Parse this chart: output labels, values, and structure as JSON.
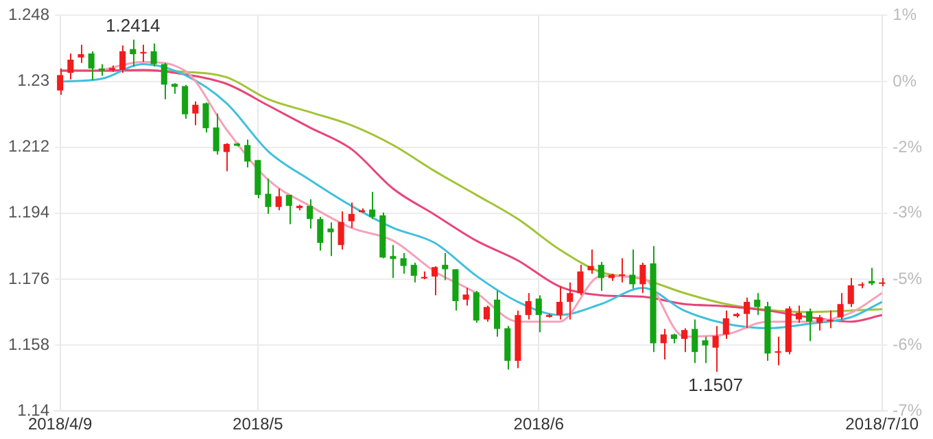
{
  "chart_data": {
    "type": "candlestick",
    "categories": [
      "2018/4/9",
      null,
      null,
      null,
      null,
      null,
      null,
      null,
      null,
      null,
      null,
      null,
      null,
      null,
      null,
      null,
      null,
      null,
      null,
      "2018/5",
      null,
      null,
      null,
      null,
      null,
      null,
      null,
      null,
      null,
      null,
      null,
      null,
      null,
      null,
      null,
      null,
      null,
      null,
      null,
      null,
      null,
      null,
      null,
      null,
      null,
      null,
      "2018/6",
      null,
      null,
      null,
      null,
      null,
      null,
      null,
      null,
      null,
      null,
      null,
      null,
      null,
      null,
      null,
      null,
      null,
      null,
      null,
      null,
      null,
      null,
      null,
      null,
      null,
      null,
      null,
      null,
      null,
      null,
      null,
      null,
      "2018/7/10"
    ],
    "ohlc": [
      [
        1.2275,
        1.2335,
        1.2263,
        1.2317
      ],
      [
        1.2323,
        1.2376,
        1.2305,
        1.2359
      ],
      [
        1.2365,
        1.24,
        1.235,
        1.2374
      ],
      [
        1.2376,
        1.2382,
        1.2303,
        1.2335
      ],
      [
        1.2335,
        1.2347,
        1.2315,
        1.2329
      ],
      [
        1.2331,
        1.2343,
        1.2326,
        1.2336
      ],
      [
        1.2331,
        1.2398,
        1.2323,
        1.2382
      ],
      [
        1.2388,
        1.2414,
        1.2341,
        1.2374
      ],
      [
        1.2376,
        1.24,
        1.2353,
        1.238
      ],
      [
        1.2382,
        1.2403,
        1.2341,
        1.2347
      ],
      [
        1.2347,
        1.235,
        1.2251,
        1.2291
      ],
      [
        1.2293,
        1.2295,
        1.2266,
        1.2285
      ],
      [
        1.2287,
        1.229,
        1.2198,
        1.221
      ],
      [
        1.2212,
        1.2245,
        1.218,
        1.2236
      ],
      [
        1.224,
        1.2242,
        1.216,
        1.2172
      ],
      [
        1.2174,
        1.2212,
        1.21,
        1.2109
      ],
      [
        1.2107,
        1.2131,
        1.2055,
        1.2129
      ],
      [
        1.213,
        1.2132,
        1.2122,
        1.2124
      ],
      [
        1.2126,
        1.2141,
        1.2065,
        1.2081
      ],
      [
        1.2085,
        1.2085,
        1.1981,
        1.199
      ],
      [
        1.1993,
        1.2034,
        1.1938,
        1.1957
      ],
      [
        1.1957,
        1.2007,
        1.1948,
        1.1986
      ],
      [
        1.199,
        1.199,
        1.191,
        1.196
      ],
      [
        1.1954,
        1.1963,
        1.1948,
        1.196
      ],
      [
        1.196,
        1.1978,
        1.1898,
        1.1924
      ],
      [
        1.1924,
        1.193,
        1.1838,
        1.1859
      ],
      [
        1.1898,
        1.1915,
        1.1823,
        1.1888
      ],
      [
        1.1853,
        1.1945,
        1.1841,
        1.1916
      ],
      [
        1.1918,
        1.1969,
        1.19,
        1.1938
      ],
      [
        1.1943,
        1.1953,
        1.1941,
        1.1948
      ],
      [
        1.195,
        1.1998,
        1.1924,
        1.193
      ],
      [
        1.1934,
        1.1942,
        1.1817,
        1.1819
      ],
      [
        1.1823,
        1.1853,
        1.1763,
        1.1815
      ],
      [
        1.1817,
        1.1831,
        1.1775,
        1.1796
      ],
      [
        1.1799,
        1.1805,
        1.1751,
        1.1769
      ],
      [
        1.1762,
        1.1781,
        1.176,
        1.1766
      ],
      [
        1.1767,
        1.1795,
        1.1716,
        1.1793
      ],
      [
        1.1799,
        1.1831,
        1.1757,
        1.1787
      ],
      [
        1.1787,
        1.1787,
        1.1674,
        1.17
      ],
      [
        1.1704,
        1.1736,
        1.1688,
        1.1718
      ],
      [
        1.1724,
        1.1728,
        1.1641,
        1.1647
      ],
      [
        1.165,
        1.1688,
        1.1644,
        1.1684
      ],
      [
        1.1704,
        1.1728,
        1.1603,
        1.1624
      ],
      [
        1.1626,
        1.1632,
        1.1513,
        1.1537
      ],
      [
        1.1537,
        1.1674,
        1.1517,
        1.1662
      ],
      [
        1.1662,
        1.1722,
        1.165,
        1.17
      ],
      [
        1.1707,
        1.1716,
        1.1615,
        1.1662
      ],
      [
        1.1657,
        1.1665,
        1.1655,
        1.1662
      ],
      [
        1.1662,
        1.174,
        1.165,
        1.1698
      ],
      [
        1.1698,
        1.1751,
        1.165,
        1.1722
      ],
      [
        1.1722,
        1.1799,
        1.1716,
        1.1781
      ],
      [
        1.1784,
        1.1841,
        1.1775,
        1.1796
      ],
      [
        1.1799,
        1.1807,
        1.1728,
        1.1763
      ],
      [
        1.1763,
        1.1775,
        1.1755,
        1.1772
      ],
      [
        1.1769,
        1.1817,
        1.1751,
        1.1773
      ],
      [
        1.1772,
        1.1841,
        1.1734,
        1.1746
      ],
      [
        1.1746,
        1.1805,
        1.1722,
        1.1799
      ],
      [
        1.1803,
        1.185,
        1.1561,
        1.1585
      ],
      [
        1.1585,
        1.1624,
        1.1541,
        1.1609
      ],
      [
        1.1609,
        1.1611,
        1.1585,
        1.1597
      ],
      [
        1.1597,
        1.1626,
        1.1561,
        1.1621
      ],
      [
        1.1624,
        1.165,
        1.1531,
        1.1561
      ],
      [
        1.1593,
        1.1603,
        1.1531,
        1.1579
      ],
      [
        1.1573,
        1.1632,
        1.1507,
        1.1605
      ],
      [
        1.1609,
        1.1674,
        1.1597,
        1.1653
      ],
      [
        1.1659,
        1.1668,
        1.1655,
        1.1665
      ],
      [
        1.1665,
        1.171,
        1.1626,
        1.1698
      ],
      [
        1.1704,
        1.1722,
        1.1662,
        1.1684
      ],
      [
        1.1686,
        1.1698,
        1.1537,
        1.1557
      ],
      [
        1.1559,
        1.1603,
        1.1525,
        1.1563
      ],
      [
        1.1561,
        1.1686,
        1.1555,
        1.168
      ],
      [
        1.165,
        1.1688,
        1.1641,
        1.1668
      ],
      [
        1.1672,
        1.168,
        1.1591,
        1.1644
      ],
      [
        1.1641,
        1.1662,
        1.162,
        1.1656
      ],
      [
        1.1645,
        1.1674,
        1.1626,
        1.1649
      ],
      [
        1.1656,
        1.1722,
        1.165,
        1.1692
      ],
      [
        1.1692,
        1.1763,
        1.1684,
        1.1743
      ],
      [
        1.1743,
        1.1751,
        1.1735,
        1.1746
      ],
      [
        1.1755,
        1.1791,
        1.1743,
        1.1748
      ],
      [
        1.1748,
        1.1763,
        1.174,
        1.1751
      ]
    ],
    "colors": [
      "#f21c1c",
      "#f21c1c",
      "#f21c1c",
      "#14a314",
      "#14a314",
      "#f21c1c",
      "#f21c1c",
      "#14a314",
      "#f21c1c",
      "#14a314",
      "#14a314",
      "#14a314",
      "#14a314",
      "#f21c1c",
      "#14a314",
      "#14a314",
      "#f21c1c",
      "#14a314",
      "#14a314",
      "#14a314",
      "#14a314",
      "#f21c1c",
      "#14a314",
      "#f21c1c",
      "#14a314",
      "#14a314",
      "#14a314",
      "#f21c1c",
      "#f21c1c",
      "#f21c1c",
      "#14a314",
      "#14a314",
      "#14a314",
      "#14a314",
      "#14a314",
      "#f21c1c",
      "#f21c1c",
      "#14a314",
      "#14a314",
      "#f21c1c",
      "#14a314",
      "#f21c1c",
      "#14a314",
      "#14a314",
      "#f21c1c",
      "#f21c1c",
      "#14a314",
      "#f21c1c",
      "#f21c1c",
      "#f21c1c",
      "#f21c1c",
      "#f21c1c",
      "#14a314",
      "#f21c1c",
      "#f21c1c",
      "#14a314",
      "#f21c1c",
      "#14a314",
      "#f21c1c",
      "#14a314",
      "#f21c1c",
      "#14a314",
      "#14a314",
      "#f21c1c",
      "#f21c1c",
      "#f21c1c",
      "#f21c1c",
      "#14a314",
      "#14a314",
      "#f21c1c",
      "#f21c1c",
      "#f21c1c",
      "#14a314",
      "#f21c1c",
      "#f21c1c",
      "#f21c1c",
      "#f21c1c",
      "#f21c1c",
      "#14a314",
      "#f21c1c"
    ],
    "series": [
      {
        "type": "line",
        "color": "#f7a1b8",
        "values": [
          null,
          null,
          null,
          null,
          1.2331,
          null,
          null,
          null,
          1.2353,
          null,
          null,
          null,
          1.2329,
          null,
          null,
          null,
          1.2168,
          null,
          null,
          null,
          1.2031,
          null,
          null,
          null,
          1.196,
          null,
          null,
          null,
          1.19,
          null,
          null,
          null,
          1.1865,
          null,
          null,
          null,
          1.1781,
          null,
          null,
          null,
          1.1722,
          null,
          null,
          null,
          1.1644,
          null,
          null,
          null,
          1.1644,
          null,
          null,
          null,
          1.1769,
          null,
          null,
          null,
          1.1763,
          null,
          null,
          null,
          1.1603,
          null,
          null,
          null,
          1.1609,
          null,
          null,
          null,
          1.1644,
          null,
          null,
          null,
          1.1644,
          null,
          null,
          null,
          1.1668,
          null,
          null,
          1.1722
        ]
      },
      {
        "type": "line",
        "color": "#3fc0dd",
        "values": [
          1.2299,
          null,
          null,
          null,
          1.2307,
          null,
          null,
          null,
          1.2347,
          null,
          null,
          null,
          1.2317,
          null,
          null,
          null,
          1.224,
          null,
          null,
          null,
          1.2109,
          null,
          null,
          null,
          1.2031,
          null,
          null,
          null,
          1.196,
          null,
          null,
          null,
          1.19,
          null,
          null,
          null,
          1.1859,
          null,
          null,
          null,
          1.1769,
          null,
          null,
          null,
          1.1698,
          null,
          null,
          null,
          1.1662,
          null,
          null,
          null,
          1.1692,
          null,
          null,
          null,
          1.1736,
          null,
          null,
          null,
          1.1674,
          null,
          null,
          null,
          1.1638,
          null,
          null,
          null,
          1.1626,
          null,
          null,
          null,
          1.1638,
          null,
          null,
          null,
          1.1656,
          null,
          null,
          1.1698
        ]
      },
      {
        "type": "line",
        "color": "#e8457a",
        "values": [
          1.2329,
          null,
          null,
          null,
          1.2329,
          null,
          null,
          null,
          1.2331,
          null,
          null,
          null,
          1.2319,
          null,
          null,
          null,
          1.2293,
          null,
          null,
          null,
          1.2234,
          null,
          null,
          null,
          1.2174,
          null,
          null,
          null,
          1.2115,
          null,
          null,
          null,
          1.2007,
          null,
          null,
          null,
          1.1936,
          null,
          null,
          null,
          1.1865,
          null,
          null,
          null,
          1.1811,
          null,
          null,
          null,
          1.174,
          null,
          null,
          null,
          1.1716,
          null,
          null,
          null,
          1.1712,
          null,
          null,
          null,
          1.1692,
          null,
          null,
          null,
          1.1686,
          null,
          null,
          null,
          1.1674,
          null,
          null,
          null,
          1.1656,
          null,
          null,
          null,
          1.1644,
          null,
          null,
          1.1662
        ]
      },
      {
        "type": "line",
        "color": "#a2c437",
        "values": [
          1.2329,
          null,
          null,
          null,
          1.2329,
          null,
          null,
          null,
          1.2329,
          null,
          null,
          null,
          1.2326,
          null,
          null,
          null,
          1.2311,
          null,
          null,
          null,
          1.2251,
          null,
          null,
          null,
          1.2216,
          null,
          null,
          null,
          1.218,
          null,
          null,
          null,
          1.2126,
          null,
          null,
          null,
          1.2055,
          null,
          null,
          null,
          1.199,
          null,
          null,
          null,
          1.1924,
          null,
          null,
          null,
          1.1841,
          null,
          null,
          null,
          1.1779,
          null,
          null,
          null,
          1.176,
          null,
          null,
          null,
          1.1722,
          null,
          null,
          null,
          1.1692,
          null,
          null,
          null,
          1.1676,
          null,
          null,
          null,
          1.167,
          null,
          null,
          null,
          1.1674,
          null,
          null,
          1.1678
        ]
      }
    ],
    "ylim": [
      1.14,
      1.248
    ],
    "yticks": [
      1.14,
      1.158,
      1.176,
      1.194,
      1.212,
      1.23,
      1.248
    ],
    "y2lim": [
      -7.32,
      1.04
    ],
    "y2ticks": [
      {
        "value": -7.32,
        "label": "-7%"
      },
      {
        "value": -5.93,
        "label": "-6%"
      },
      {
        "value": -4.54,
        "label": "-5%"
      },
      {
        "value": -3.14,
        "label": "-3%"
      },
      {
        "value": -1.75,
        "label": "-2%"
      },
      {
        "value": -0.36,
        "label": "0%"
      },
      {
        "value": 1.04,
        "label": "1%"
      }
    ],
    "annotations": [
      {
        "text": "1.2414",
        "y": 1.2414
      },
      {
        "text": "1.1507",
        "y": 1.1507
      }
    ],
    "grid": true,
    "legend": false,
    "marker": "none"
  }
}
